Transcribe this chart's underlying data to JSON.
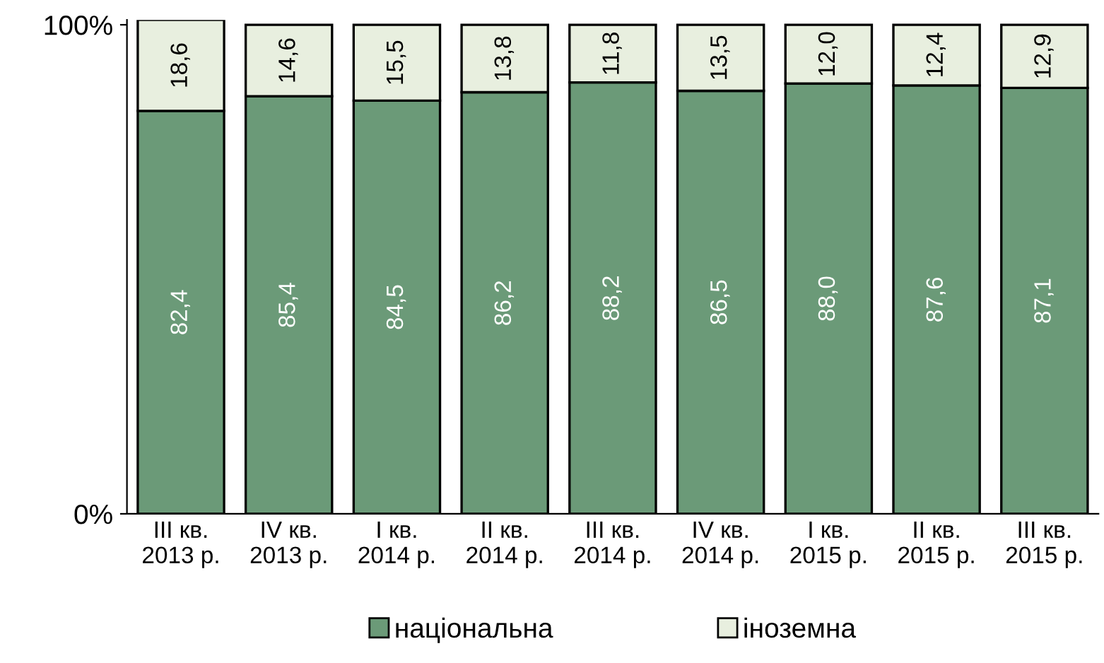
{
  "chart_data": {
    "type": "bar",
    "stacked": true,
    "categories": [
      "III кв.\n2013 р.",
      "IV кв.\n2013 р.",
      "I кв.\n2014 р.",
      "II кв.\n2014 р.",
      "III кв.\n2014 р.",
      "IV кв.\n2014 р.",
      "I кв.\n2015 р.",
      "II кв.\n2015 р.",
      "III кв.\n2015 р."
    ],
    "series": [
      {
        "name": "національна",
        "color": "#6b9a78",
        "values": [
          82.4,
          85.4,
          84.5,
          86.2,
          88.2,
          86.5,
          88.0,
          87.6,
          87.1
        ],
        "value_labels": [
          "82,4",
          "85,4",
          "84,5",
          "86,2",
          "88,2",
          "86,5",
          "88,0",
          "87,6",
          "87,1"
        ]
      },
      {
        "name": "іноземна",
        "color": "#e8efdf",
        "values": [
          18.6,
          14.6,
          15.5,
          13.8,
          11.8,
          13.5,
          12.0,
          12.4,
          12.9
        ],
        "value_labels": [
          "18,6",
          "14,6",
          "15,5",
          "13,8",
          "11,8",
          "13,5",
          "12,0",
          "12,4",
          "12,9"
        ]
      }
    ],
    "ylim": [
      0,
      101
    ],
    "yticks": [
      {
        "value": 0,
        "label": "0%"
      },
      {
        "value": 100,
        "label": "100%"
      }
    ],
    "grid": false,
    "legend": "bottom"
  }
}
